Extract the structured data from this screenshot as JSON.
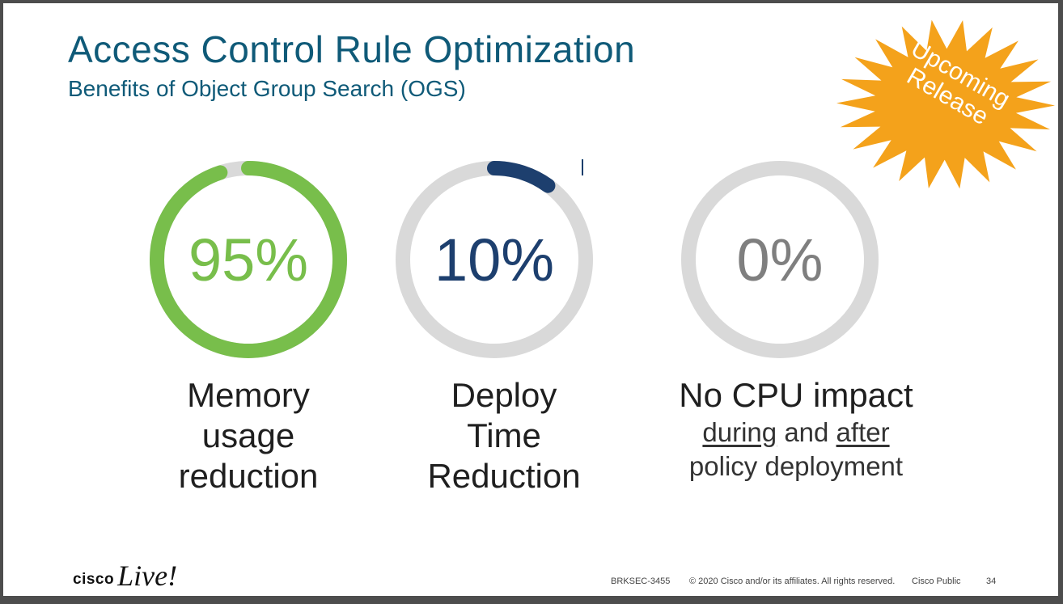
{
  "slide": {
    "title": "Access Control Rule Optimization",
    "subtitle": "Benefits of Object Group Search (OGS)",
    "badge": {
      "line1": "Upcoming",
      "line2": "Release",
      "color": "#f4a21b"
    },
    "metrics": [
      {
        "value": "95%",
        "fraction": 0.95,
        "color": "#78be4b",
        "label_lines": [
          "Memory",
          "usage",
          "reduction"
        ]
      },
      {
        "value": "10%",
        "fraction": 0.1,
        "color": "#1d3f6e",
        "label_lines": [
          "Deploy",
          "Time",
          "Reduction"
        ]
      },
      {
        "value": "0%",
        "fraction": 0.0,
        "color": "#7f7f7f",
        "headline": "No CPU impact",
        "sub_during": "during",
        "sub_and": "and",
        "sub_after": "after",
        "sub_line2": "policy deployment"
      }
    ],
    "ring_track_color": "#d9d9d9"
  },
  "footer": {
    "logo_cisco": "cisco",
    "logo_live": "Live!",
    "session": "BRKSEC-3455",
    "copyright": "© 2020  Cisco and/or its affiliates. All rights reserved.",
    "classification": "Cisco Public",
    "page": "34"
  }
}
